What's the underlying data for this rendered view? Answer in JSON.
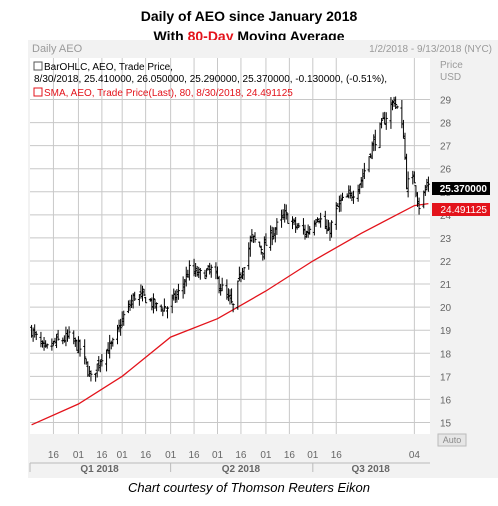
{
  "title": {
    "line1": "Daily of AEO since January 2018",
    "line2_pre": "With ",
    "line2_highlight": "80-Day",
    "line2_post": " Moving Average"
  },
  "header": {
    "left_label": "Daily AEO",
    "date_range": "1/2/2018 - 9/13/2018 (NYC)"
  },
  "legend": {
    "ohlc_line1": "BarOHLC, AEO, Trade Price,",
    "ohlc_line2": "8/30/2018, 25.410000, 26.050000, 25.290000, 25.370000, -0.130000, (-0.51%),",
    "sma_line": "SMA, AEO, Trade Price(Last), 80, 8/30/2018, 24.491125"
  },
  "axis": {
    "price_label": "Price",
    "currency_label": "USD",
    "auto_label": "Auto"
  },
  "credit": "Chart courtesy of Thomson Reuters Eikon",
  "colors": {
    "price_bars": "#000000",
    "sma": "#e3131b",
    "last_price_box": "#000000",
    "sma_box": "#e3131b",
    "grid": "#c8c8c8",
    "plot_bg": "#ffffff",
    "axis_text": "#666666"
  },
  "chart_data": {
    "type": "bar",
    "subtype": "ohlc",
    "symbol": "AEO",
    "ylim": [
      14.5,
      30.8
    ],
    "y_ticks": [
      15,
      16,
      17,
      18,
      19,
      20,
      21,
      22,
      23,
      24,
      25,
      26,
      27,
      28,
      29
    ],
    "grid": true,
    "x_tick_labels": [
      "16",
      "01",
      "16",
      "01",
      "16",
      "01",
      "16",
      "01",
      "16",
      "01",
      "16",
      "01",
      "16",
      "04"
    ],
    "x_tick_dates": [
      "2018-01-16",
      "2018-02-01",
      "2018-02-16",
      "2018-03-01",
      "2018-03-16",
      "2018-04-01",
      "2018-04-16",
      "2018-05-01",
      "2018-05-16",
      "2018-06-01",
      "2018-06-16",
      "2018-07-01",
      "2018-07-16",
      "2018-09-04"
    ],
    "quarter_labels": [
      "Q1 2018",
      "Q2 2018",
      "Q3 2018"
    ],
    "quarter_ranges": [
      [
        "2018-01-01",
        "2018-03-31"
      ],
      [
        "2018-04-01",
        "2018-06-30"
      ],
      [
        "2018-07-01",
        "2018-09-13"
      ]
    ],
    "last_price": 25.37,
    "last_sma": 24.491125,
    "series": [
      {
        "name": "AEO",
        "kind": "ohlc",
        "points": [
          {
            "x": "2018-01-02",
            "close": 19.0
          },
          {
            "x": "2018-01-10",
            "close": 18.1
          },
          {
            "x": "2018-01-18",
            "close": 18.5
          },
          {
            "x": "2018-01-26",
            "close": 18.7
          },
          {
            "x": "2018-02-02",
            "close": 18.2
          },
          {
            "x": "2018-02-09",
            "close": 16.9
          },
          {
            "x": "2018-02-16",
            "close": 17.9
          },
          {
            "x": "2018-02-23",
            "close": 18.4
          },
          {
            "x": "2018-03-02",
            "close": 19.6
          },
          {
            "x": "2018-03-09",
            "close": 20.5
          },
          {
            "x": "2018-03-16",
            "close": 20.4
          },
          {
            "x": "2018-03-23",
            "close": 20.0
          },
          {
            "x": "2018-03-30",
            "close": 20.0
          },
          {
            "x": "2018-04-06",
            "close": 20.6
          },
          {
            "x": "2018-04-13",
            "close": 21.6
          },
          {
            "x": "2018-04-20",
            "close": 21.4
          },
          {
            "x": "2018-04-27",
            "close": 21.6
          },
          {
            "x": "2018-05-04",
            "close": 20.8
          },
          {
            "x": "2018-05-11",
            "close": 20.0
          },
          {
            "x": "2018-05-16",
            "close": 21.5
          },
          {
            "x": "2018-05-23",
            "close": 23.0
          },
          {
            "x": "2018-05-30",
            "close": 22.5
          },
          {
            "x": "2018-06-06",
            "close": 23.3
          },
          {
            "x": "2018-06-13",
            "close": 24.0
          },
          {
            "x": "2018-06-20",
            "close": 23.5
          },
          {
            "x": "2018-06-27",
            "close": 23.2
          },
          {
            "x": "2018-07-04",
            "close": 24.0
          },
          {
            "x": "2018-07-11",
            "close": 23.2
          },
          {
            "x": "2018-07-18",
            "close": 24.5
          },
          {
            "x": "2018-07-25",
            "close": 24.8
          },
          {
            "x": "2018-08-01",
            "close": 25.5
          },
          {
            "x": "2018-08-08",
            "close": 27.0
          },
          {
            "x": "2018-08-15",
            "close": 28.0
          },
          {
            "x": "2018-08-22",
            "close": 29.0
          },
          {
            "x": "2018-08-24",
            "close": 28.6
          },
          {
            "x": "2018-08-28",
            "close": 27.5
          },
          {
            "x": "2018-08-30",
            "open": 25.41,
            "high": 26.05,
            "low": 25.29,
            "close": 25.37
          },
          {
            "x": "2018-09-04",
            "close": 25.5
          },
          {
            "x": "2018-09-07",
            "close": 24.4
          },
          {
            "x": "2018-09-13",
            "close": 25.4
          }
        ]
      },
      {
        "name": "SMA, AEO, Trade Price(Last), 80",
        "kind": "line",
        "points": [
          {
            "x": "2018-01-02",
            "y": 14.9
          },
          {
            "x": "2018-02-01",
            "y": 15.8
          },
          {
            "x": "2018-03-01",
            "y": 17.0
          },
          {
            "x": "2018-04-01",
            "y": 18.7
          },
          {
            "x": "2018-05-01",
            "y": 19.5
          },
          {
            "x": "2018-06-01",
            "y": 20.7
          },
          {
            "x": "2018-07-01",
            "y": 22.0
          },
          {
            "x": "2018-08-01",
            "y": 23.2
          },
          {
            "x": "2018-09-04",
            "y": 24.4
          },
          {
            "x": "2018-09-13",
            "y": 24.49
          }
        ]
      }
    ]
  }
}
